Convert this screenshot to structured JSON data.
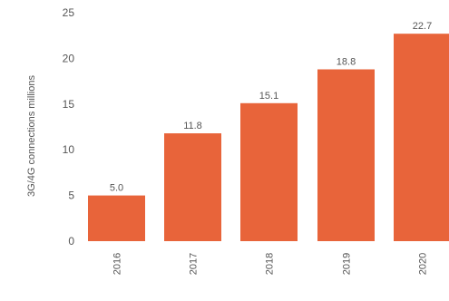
{
  "chart_data": {
    "type": "bar",
    "categories": [
      "2016",
      "2017",
      "2018",
      "2019",
      "2020"
    ],
    "values": [
      5.0,
      11.8,
      15.1,
      18.8,
      22.7
    ],
    "value_labels": [
      "5.0",
      "11.8",
      "15.1",
      "18.8",
      "22.7"
    ],
    "title": "",
    "xlabel": "",
    "ylabel": "3G/4G connections millions",
    "ylim": [
      0,
      25
    ],
    "yticks": [
      0,
      5,
      10,
      15,
      20,
      25
    ],
    "grid": false,
    "legend": "none",
    "bar_color": "#e8643a",
    "text_color": "#555555"
  }
}
